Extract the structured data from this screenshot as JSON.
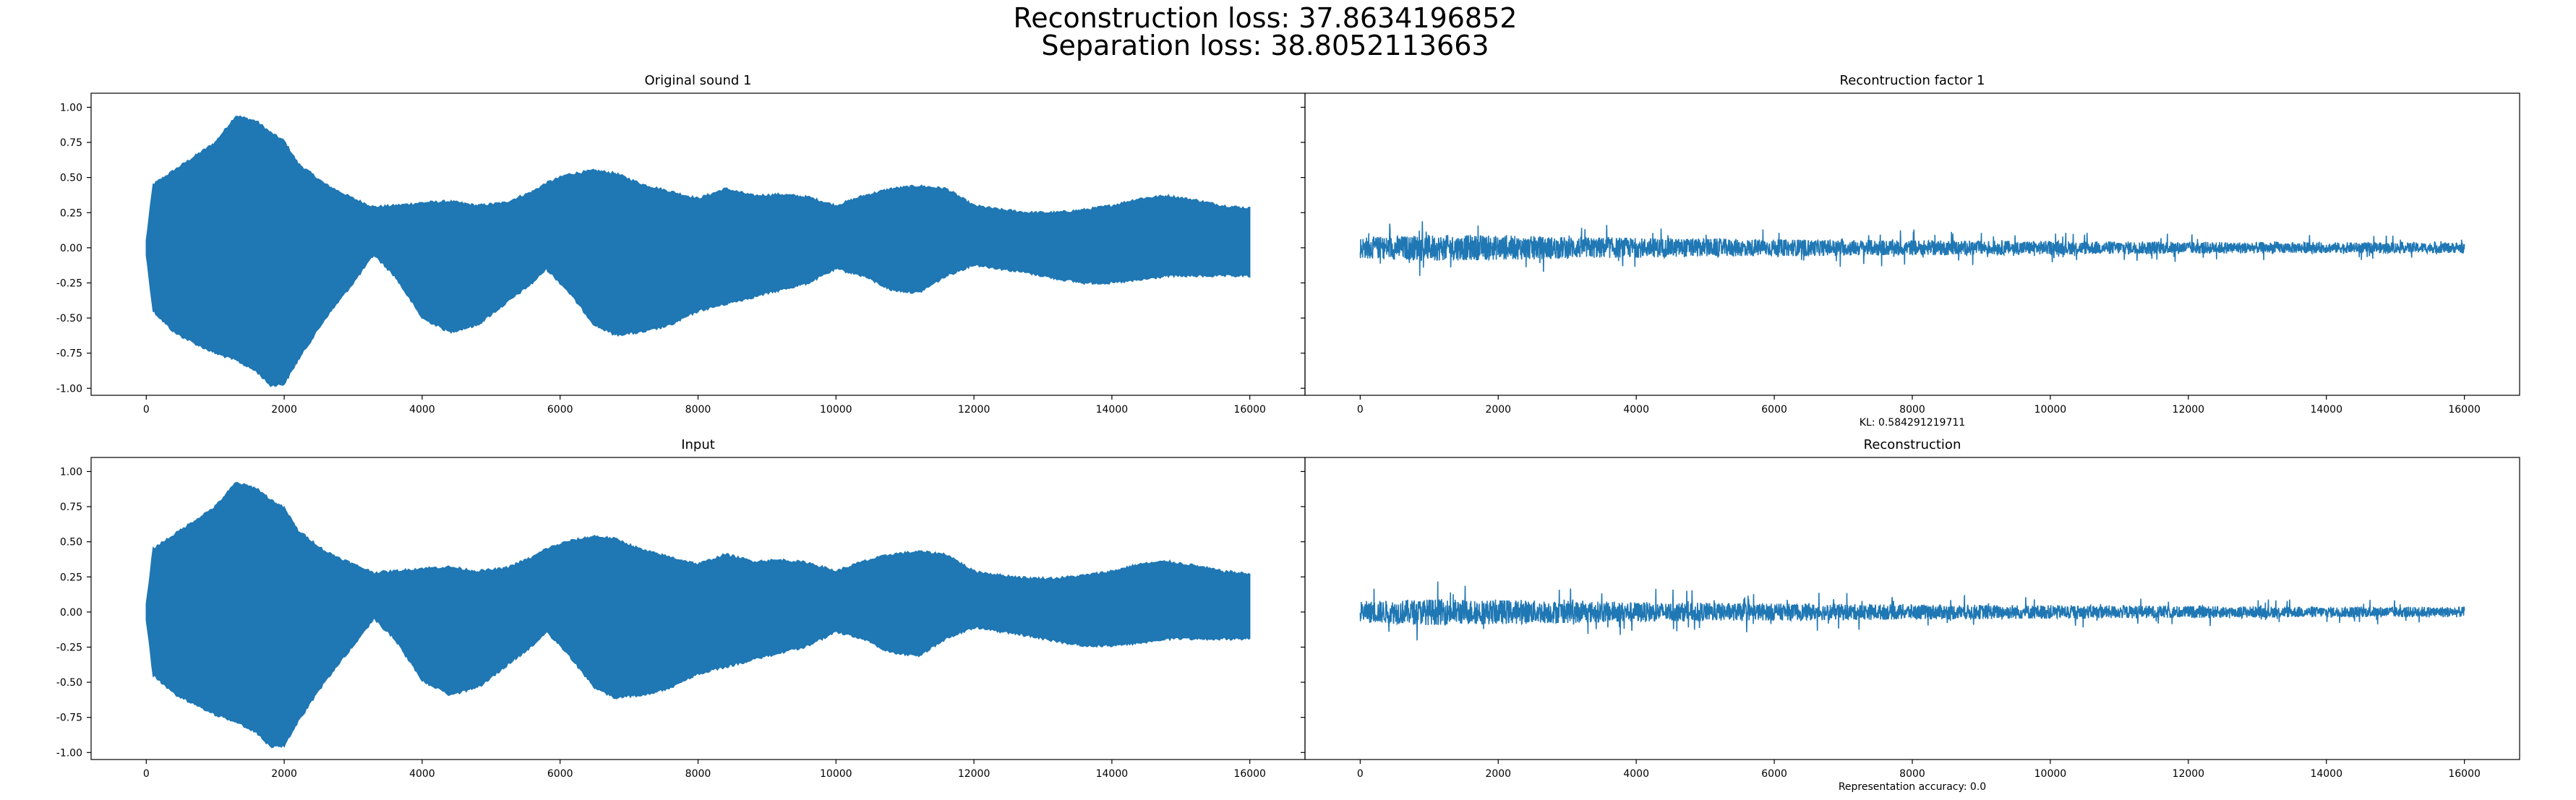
{
  "figure": {
    "suptitle_line1": "Reconstruction loss: 37.8634196852",
    "suptitle_line2": "Separation loss: 38.8052113663",
    "series_color": "#1f77b4"
  },
  "chart_data": [
    {
      "type": "line",
      "title": "Original sound 1",
      "xlabel": "",
      "xlim": [
        -800,
        16800
      ],
      "ylim": [
        -1.05,
        1.1
      ],
      "xticks": [
        "0",
        "2000",
        "4000",
        "6000",
        "8000",
        "10000",
        "12000",
        "14000",
        "16000"
      ],
      "yticks": [
        "1.00",
        "0.75",
        "0.50",
        "0.25",
        "0.00",
        "-0.25",
        "-0.50",
        "-0.75",
        "-1.00"
      ],
      "series": [
        {
          "style": "dense-envelope",
          "n_samples": 16000,
          "envelope_x": [
            0,
            100,
            400,
            700,
            1000,
            1300,
            1600,
            1800,
            2000,
            2200,
            2600,
            3000,
            3300,
            3600,
            4000,
            4400,
            4800,
            5200,
            5600,
            5800,
            6100,
            6500,
            6800,
            7200,
            7600,
            8000,
            8400,
            8800,
            9200,
            9600,
            10000,
            10400,
            10800,
            11200,
            11600,
            12000,
            12400,
            12800,
            13200,
            13600,
            14000,
            14400,
            14800,
            15200,
            15600,
            16000
          ],
          "envelope_upper": [
            0.05,
            0.45,
            0.55,
            0.65,
            0.75,
            0.94,
            0.9,
            0.82,
            0.76,
            0.6,
            0.45,
            0.35,
            0.29,
            0.3,
            0.32,
            0.33,
            0.3,
            0.32,
            0.4,
            0.46,
            0.52,
            0.55,
            0.53,
            0.45,
            0.4,
            0.35,
            0.42,
            0.37,
            0.38,
            0.36,
            0.3,
            0.37,
            0.42,
            0.44,
            0.42,
            0.3,
            0.27,
            0.25,
            0.25,
            0.27,
            0.3,
            0.35,
            0.37,
            0.34,
            0.3,
            0.28
          ],
          "envelope_lower": [
            -0.05,
            -0.45,
            -0.6,
            -0.68,
            -0.75,
            -0.8,
            -0.88,
            -0.98,
            -0.97,
            -0.8,
            -0.5,
            -0.25,
            -0.05,
            -0.2,
            -0.5,
            -0.6,
            -0.55,
            -0.4,
            -0.25,
            -0.15,
            -0.3,
            -0.55,
            -0.62,
            -0.6,
            -0.55,
            -0.45,
            -0.4,
            -0.35,
            -0.3,
            -0.25,
            -0.15,
            -0.2,
            -0.3,
            -0.32,
            -0.2,
            -0.12,
            -0.15,
            -0.18,
            -0.22,
            -0.25,
            -0.25,
            -0.23,
            -0.2,
            -0.2,
            -0.2,
            -0.2
          ]
        }
      ]
    },
    {
      "type": "line",
      "title": "Recontruction factor 1",
      "xlabel": "KL: 0.584291219711",
      "xlim": [
        -800,
        16800
      ],
      "ylim": [
        -1.05,
        1.1
      ],
      "xticks": [
        "0",
        "2000",
        "4000",
        "6000",
        "8000",
        "10000",
        "12000",
        "14000",
        "16000"
      ],
      "yticks": [],
      "series": [
        {
          "style": "noise",
          "n_samples": 16000,
          "amplitude_x": [
            0,
            1000,
            2000,
            4000,
            6000,
            8000,
            10000,
            12000,
            14000,
            16000
          ],
          "amplitude_y": [
            0.14,
            0.17,
            0.16,
            0.13,
            0.11,
            0.1,
            0.09,
            0.08,
            0.07,
            0.07
          ],
          "spike_max": 0.27,
          "spike_min": -0.35
        }
      ]
    },
    {
      "type": "line",
      "title": "Input",
      "xlabel": "",
      "xlim": [
        -800,
        16800
      ],
      "ylim": [
        -1.05,
        1.1
      ],
      "xticks": [
        "0",
        "2000",
        "4000",
        "6000",
        "8000",
        "10000",
        "12000",
        "14000",
        "16000"
      ],
      "yticks": [
        "1.00",
        "0.75",
        "0.50",
        "0.25",
        "0.00",
        "-0.25",
        "-0.50",
        "-0.75",
        "-1.00"
      ],
      "series": [
        {
          "style": "dense-envelope",
          "n_samples": 16000,
          "envelope_x": [
            0,
            100,
            400,
            700,
            1000,
            1300,
            1600,
            1800,
            2000,
            2200,
            2600,
            3000,
            3300,
            3600,
            4000,
            4400,
            4800,
            5200,
            5600,
            5800,
            6100,
            6500,
            6800,
            7200,
            7600,
            8000,
            8400,
            8800,
            9200,
            9600,
            10000,
            10400,
            10800,
            11200,
            11600,
            12000,
            12400,
            12800,
            13200,
            13600,
            14000,
            14400,
            14800,
            15200,
            15600,
            16000
          ],
          "envelope_upper": [
            0.05,
            0.45,
            0.55,
            0.65,
            0.75,
            0.92,
            0.88,
            0.8,
            0.74,
            0.58,
            0.43,
            0.34,
            0.28,
            0.29,
            0.31,
            0.32,
            0.29,
            0.31,
            0.39,
            0.45,
            0.5,
            0.54,
            0.52,
            0.44,
            0.39,
            0.34,
            0.41,
            0.36,
            0.37,
            0.35,
            0.29,
            0.36,
            0.41,
            0.43,
            0.41,
            0.29,
            0.26,
            0.24,
            0.24,
            0.26,
            0.29,
            0.34,
            0.36,
            0.33,
            0.29,
            0.27
          ],
          "envelope_lower": [
            -0.05,
            -0.45,
            -0.58,
            -0.66,
            -0.73,
            -0.78,
            -0.86,
            -0.96,
            -0.95,
            -0.78,
            -0.49,
            -0.24,
            -0.05,
            -0.19,
            -0.49,
            -0.59,
            -0.54,
            -0.39,
            -0.24,
            -0.14,
            -0.29,
            -0.54,
            -0.61,
            -0.59,
            -0.54,
            -0.44,
            -0.39,
            -0.34,
            -0.29,
            -0.24,
            -0.14,
            -0.19,
            -0.29,
            -0.31,
            -0.19,
            -0.11,
            -0.14,
            -0.17,
            -0.21,
            -0.24,
            -0.24,
            -0.22,
            -0.19,
            -0.19,
            -0.19,
            -0.19
          ]
        }
      ]
    },
    {
      "type": "line",
      "title": "Reconstruction",
      "xlabel": "Representation accuracy: 0.0",
      "xlim": [
        -800,
        16800
      ],
      "ylim": [
        -1.05,
        1.1
      ],
      "xticks": [
        "0",
        "2000",
        "4000",
        "6000",
        "8000",
        "10000",
        "12000",
        "14000",
        "16000"
      ],
      "yticks": [],
      "series": [
        {
          "style": "noise",
          "n_samples": 16000,
          "amplitude_x": [
            0,
            1000,
            2000,
            4000,
            6000,
            8000,
            10000,
            12000,
            14000,
            16000
          ],
          "amplitude_y": [
            0.14,
            0.17,
            0.16,
            0.13,
            0.11,
            0.1,
            0.09,
            0.08,
            0.07,
            0.07
          ],
          "spike_max": 0.27,
          "spike_min": -0.35
        }
      ]
    }
  ]
}
